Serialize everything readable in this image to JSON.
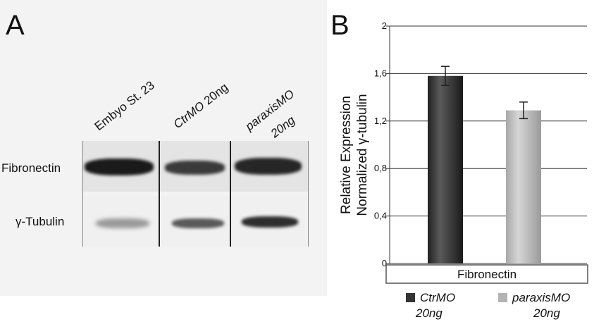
{
  "panel_a": {
    "letter": "A",
    "lanes": [
      {
        "line1": "Embyo St. 23",
        "line2": "",
        "italic": false
      },
      {
        "line1": "CtrMO",
        "line1_suffix": " 20ng",
        "line2": "",
        "italic": true
      },
      {
        "line1": "paraxisMO",
        "line2": "20ng",
        "italic": true
      }
    ],
    "rows": [
      "Fibronectin",
      "γ-Tubulin"
    ]
  },
  "panel_b": {
    "letter": "B",
    "legend": [
      {
        "name_line1": "CtrMO",
        "name_line2": "20ng",
        "color": "#333333"
      },
      {
        "name_line1": "paraxisMO",
        "name_line2": "20ng",
        "color": "#b3b3b3"
      }
    ]
  },
  "chart_data": {
    "type": "bar",
    "categories": [
      "Fibronectin"
    ],
    "series": [
      {
        "name": "CtrMO 20ng",
        "values": [
          1.58
        ],
        "error": [
          0.08
        ],
        "color": "#333333"
      },
      {
        "name": "paraxisMO 20ng",
        "values": [
          1.29
        ],
        "error": [
          0.07
        ],
        "color": "#b3b3b3"
      }
    ],
    "ylabel_line1": "Relative Expression",
    "ylabel_line2": "Normalized γ-tubulin",
    "ylim": [
      0,
      2
    ],
    "yticks": [
      "0",
      "0,4",
      "0,8",
      "1,2",
      "1,6",
      "2"
    ],
    "ytick_values": [
      0,
      0.4,
      0.8,
      1.2,
      1.6,
      2
    ],
    "xlabel_box": "Fibronectin",
    "grid": true,
    "legend_position": "bottom"
  }
}
